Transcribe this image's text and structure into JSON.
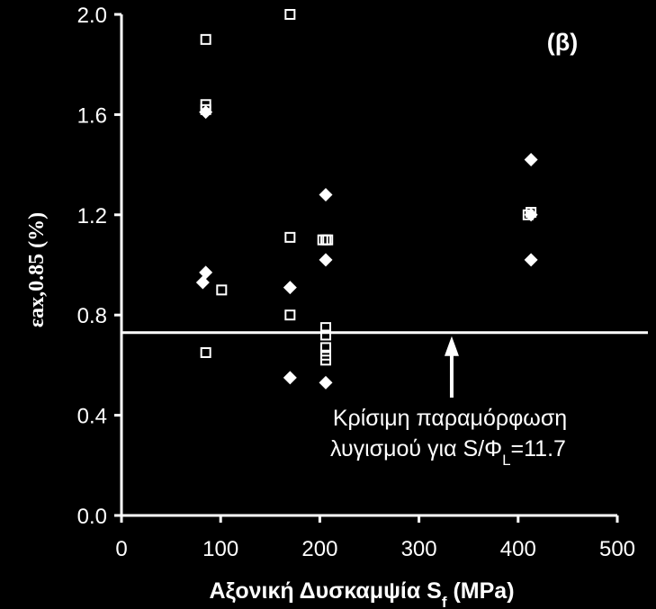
{
  "chart_data": {
    "type": "scatter",
    "panel_label": "(β)",
    "xlabel": "Αξονική Δυσκαμψία S",
    "xlabel_sub": "f",
    "xlabel_tail": " (MPa)",
    "ylabel": "εax,0.85 (%)",
    "xlim": [
      0,
      500
    ],
    "ylim": [
      0,
      2.0
    ],
    "x_ticks": [
      "0",
      "100",
      "200",
      "300",
      "400",
      "500"
    ],
    "y_ticks": [
      "0.0",
      "0.4",
      "0.8",
      "1.2",
      "1.6",
      "2.0"
    ],
    "series": [
      {
        "marker": "diamond",
        "points": [
          [
            85,
            1.61
          ],
          [
            85,
            0.97
          ],
          [
            82,
            0.93
          ],
          [
            170,
            0.91
          ],
          [
            170,
            0.55
          ],
          [
            206,
            1.28
          ],
          [
            206,
            1.02
          ],
          [
            206,
            0.53
          ],
          [
            413,
            1.42
          ],
          [
            413,
            1.2
          ],
          [
            413,
            1.02
          ]
        ]
      },
      {
        "marker": "square",
        "points": [
          [
            85,
            1.9
          ],
          [
            85,
            1.64
          ],
          [
            85,
            1.62
          ],
          [
            85,
            0.65
          ],
          [
            101,
            0.9
          ],
          [
            170,
            2.0
          ],
          [
            170,
            1.11
          ],
          [
            170,
            0.8
          ],
          [
            203,
            1.1
          ],
          [
            206,
            1.1
          ],
          [
            208,
            1.1
          ],
          [
            206,
            0.75
          ],
          [
            206,
            0.72
          ],
          [
            206,
            0.67
          ],
          [
            206,
            0.64
          ],
          [
            206,
            0.62
          ],
          [
            410,
            1.2
          ],
          [
            413,
            1.21
          ]
        ]
      }
    ],
    "reference_line": {
      "y": 0.73
    },
    "annotation": {
      "line1": "Κρίσιμη παραμόρφωση",
      "line2_pre": "λυγισμού για S/Φ",
      "line2_sub": "L",
      "line2_post": "=11.7",
      "arrow_x": 333
    },
    "colors": {
      "background": "#000000",
      "foreground": "#ffffff"
    }
  }
}
